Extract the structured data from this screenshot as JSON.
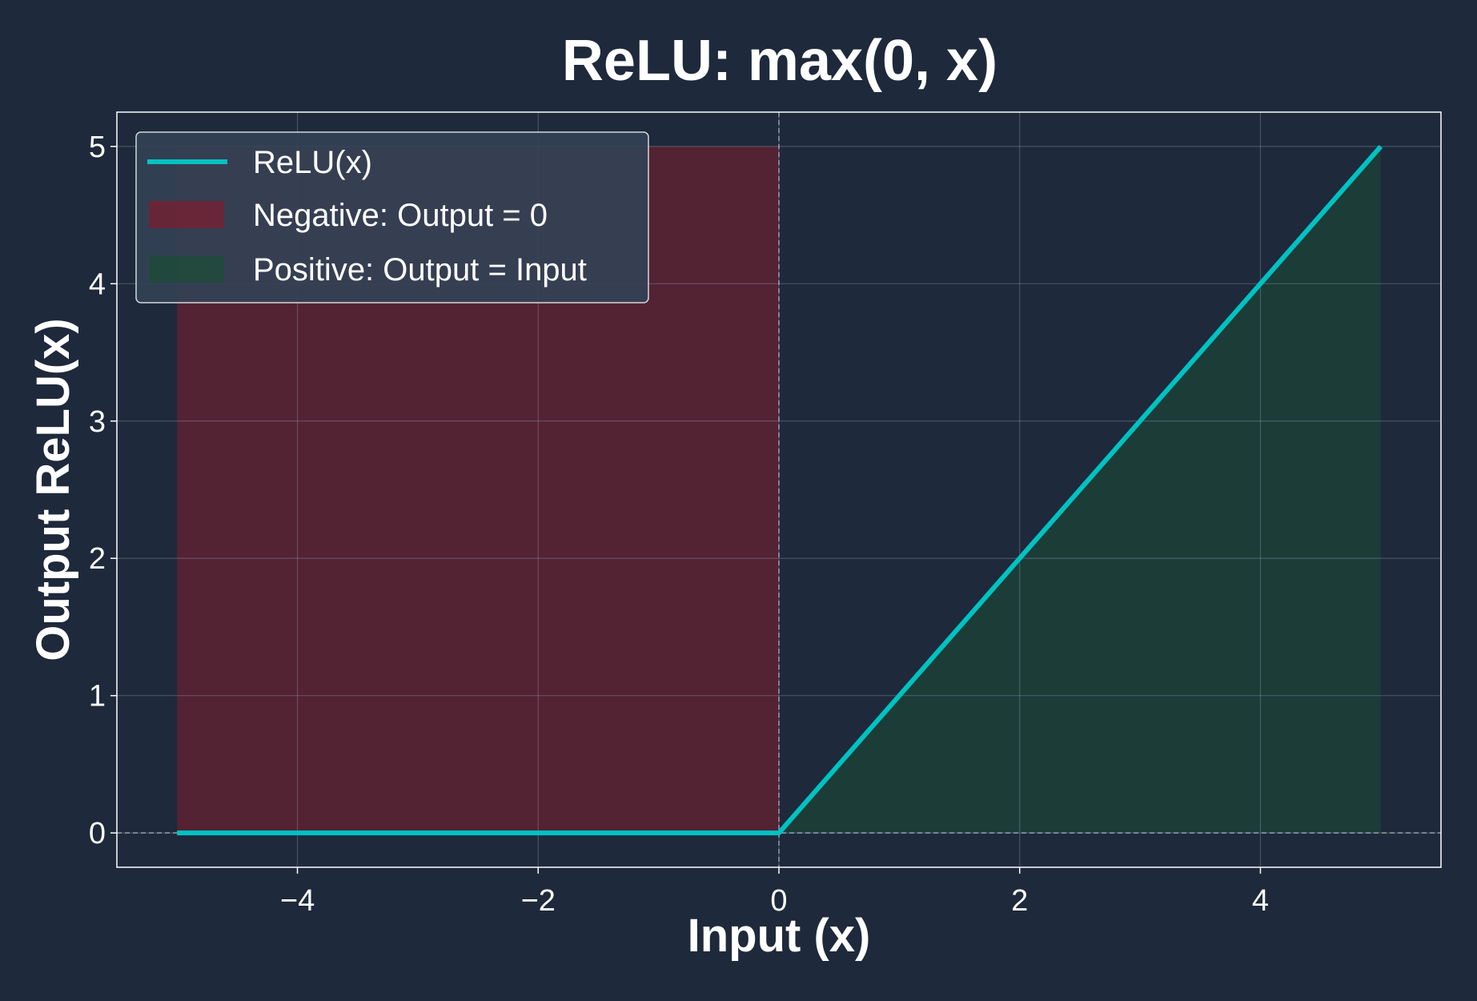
{
  "chart_data": {
    "type": "line",
    "title": "ReLU: max(0, x)",
    "xlabel": "Input (x)",
    "ylabel": "Output ReLU(x)",
    "xlim": [
      -5.5,
      5.5
    ],
    "ylim": [
      -0.25,
      5.25
    ],
    "x_ticks": [
      -4,
      -2,
      0,
      2,
      4
    ],
    "x_tick_labels": [
      "−4",
      "−2",
      "0",
      "2",
      "4"
    ],
    "y_ticks": [
      0,
      1,
      2,
      3,
      4,
      5
    ],
    "y_tick_labels": [
      "0",
      "1",
      "2",
      "3",
      "4",
      "5"
    ],
    "grid": true,
    "legend_position": "top-left",
    "reference_lines": [
      {
        "orientation": "vertical",
        "value": 0,
        "style": "dashed"
      },
      {
        "orientation": "horizontal",
        "value": 0,
        "style": "dashed"
      }
    ],
    "series": [
      {
        "name": "ReLU(x)",
        "kind": "line",
        "color": "#00c2c2",
        "x": [
          -5,
          0,
          5
        ],
        "y": [
          0,
          0,
          5
        ]
      }
    ],
    "regions": [
      {
        "name": "Negative: Output = 0",
        "kind": "area",
        "color": "#7f1d2d",
        "x": [
          -5,
          0
        ],
        "y_low": [
          0,
          0
        ],
        "y_high": [
          5,
          5
        ]
      },
      {
        "name": "Positive: Output = Input",
        "kind": "area",
        "color": "#1b4d34",
        "x": [
          0,
          5
        ],
        "y_low": [
          0,
          0
        ],
        "y_high": [
          0,
          5
        ]
      }
    ],
    "colors": {
      "background": "#1e293b",
      "axes_edge": "#ffffff",
      "grid": "#94a3b8",
      "text": "#ffffff",
      "legend_bg": "#334155"
    }
  }
}
